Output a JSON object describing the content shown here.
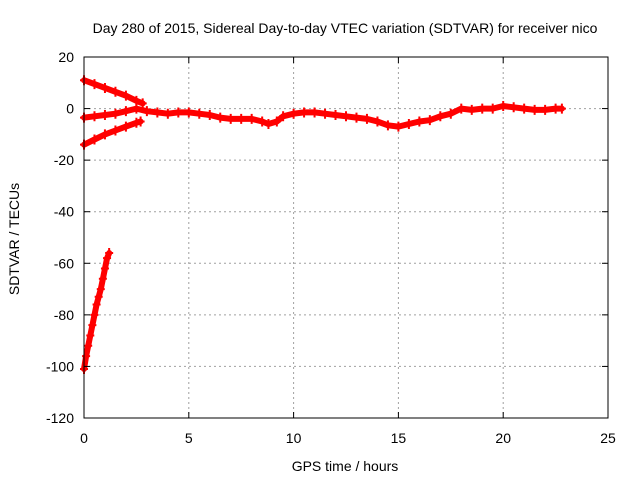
{
  "chart_data": {
    "type": "scatter",
    "title": "Day 280 of 2015, Sidereal Day-to-day VTEC variation (SDTVAR) for receiver nico",
    "xlabel": "GPS time / hours",
    "ylabel": "SDTVAR / TECUs",
    "xlim": [
      0,
      25
    ],
    "ylim": [
      -120,
      20
    ],
    "xticks": [
      0,
      5,
      10,
      15,
      20,
      25
    ],
    "yticks": [
      -120,
      -100,
      -80,
      -60,
      -40,
      -20,
      0,
      20
    ],
    "grid": true,
    "legend": "none",
    "color": "#ff0000",
    "series": [
      {
        "name": "descending-early-track",
        "x": [
          0.0,
          0.5,
          1.0,
          1.5,
          2.0,
          2.5,
          2.8
        ],
        "y": [
          11,
          9.5,
          8,
          6.5,
          5,
          3,
          2
        ]
      },
      {
        "name": "main-track",
        "x": [
          0.0,
          0.5,
          1.0,
          1.5,
          2.0,
          2.5,
          3.0,
          3.5,
          4.0,
          4.5,
          5.0,
          5.5,
          6.0,
          6.5,
          7.0,
          7.5,
          8.0,
          8.5,
          8.8,
          9.2,
          9.5,
          10.0,
          10.5,
          11.0,
          11.5,
          12.0,
          12.5,
          13.0,
          13.5,
          14.0,
          14.5,
          15.0,
          15.5,
          16.0,
          16.5,
          17.0,
          17.5,
          18.0,
          18.5,
          19.0,
          19.5,
          20.0,
          20.5,
          21.0,
          21.5,
          22.0,
          22.5,
          22.8
        ],
        "y": [
          -3.5,
          -3,
          -2.5,
          -2,
          -1,
          0,
          -1,
          -1.5,
          -2,
          -1.5,
          -1.5,
          -2,
          -2.5,
          -3.5,
          -4,
          -4,
          -4,
          -5,
          -6,
          -5,
          -3,
          -2,
          -1.5,
          -1.5,
          -2,
          -2.5,
          -3,
          -3.5,
          -4,
          -5,
          -6.5,
          -7,
          -6,
          -5,
          -4.5,
          -3,
          -2,
          0,
          -0.5,
          0,
          0,
          1,
          0.5,
          0,
          -0.5,
          -0.5,
          0,
          0
        ]
      },
      {
        "name": "ascending-early-track",
        "x": [
          0.0,
          0.5,
          1.0,
          1.5,
          2.0,
          2.5,
          2.7
        ],
        "y": [
          -14,
          -12,
          -10,
          -8.5,
          -7,
          -5.5,
          -5
        ]
      },
      {
        "name": "steep-rising-track",
        "x": [
          0.0,
          0.1,
          0.2,
          0.3,
          0.4,
          0.5,
          0.6,
          0.7,
          0.8,
          0.9,
          1.0,
          1.1,
          1.2
        ],
        "y": [
          -101,
          -96,
          -92,
          -88,
          -84,
          -80,
          -76,
          -73,
          -70,
          -66,
          -62,
          -58,
          -56
        ]
      }
    ]
  }
}
